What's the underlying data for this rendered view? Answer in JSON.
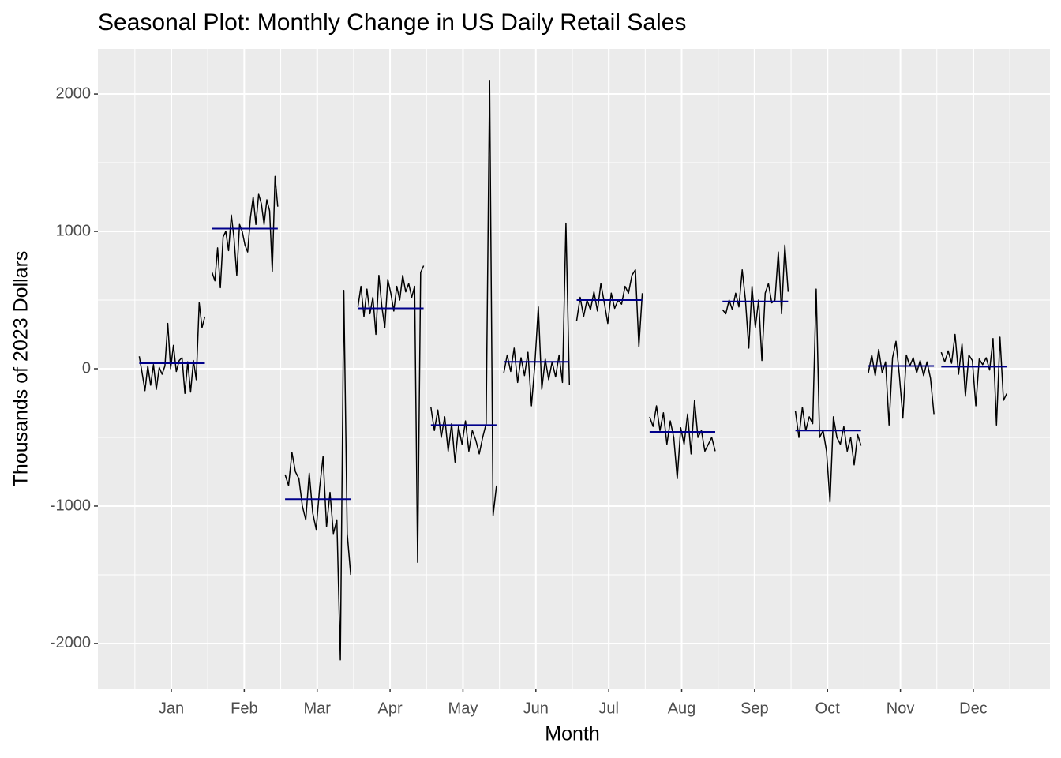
{
  "chart_data": {
    "type": "subseries",
    "title": "Seasonal Plot: Monthly Change in US Daily Retail Sales",
    "x_label": "Month",
    "y_label": "Thousands of 2023 Dollars",
    "ylim": [
      -2328,
      2328
    ],
    "yticks": [
      -2000,
      -1000,
      0,
      1000,
      2000
    ],
    "yminor": [
      -1500,
      -500,
      500,
      1500
    ],
    "grid": true,
    "line_color": "#000000",
    "mean_color": "#00008b",
    "series": [
      {
        "name": "Jan",
        "mean": 40,
        "values": [
          90,
          -30,
          -160,
          20,
          -120,
          30,
          -150,
          10,
          -40,
          20,
          330,
          0,
          170,
          -20,
          60,
          80,
          -180,
          50,
          -170,
          60,
          -80,
          480,
          300,
          380
        ]
      },
      {
        "name": "Feb",
        "mean": 1020,
        "values": [
          700,
          640,
          880,
          590,
          960,
          1000,
          860,
          1120,
          950,
          680,
          1050,
          1000,
          900,
          850,
          1100,
          1250,
          1050,
          1270,
          1200,
          1050,
          1230,
          1150,
          710,
          1400,
          1180
        ]
      },
      {
        "name": "Mar",
        "mean": -950,
        "values": [
          -770,
          -850,
          -610,
          -750,
          -800,
          -1000,
          -1100,
          -760,
          -1050,
          -1170,
          -870,
          -640,
          -1150,
          -900,
          -1200,
          -1100,
          -2120,
          570,
          -1200,
          -1500
        ]
      },
      {
        "name": "Apr",
        "mean": 440,
        "values": [
          450,
          600,
          380,
          580,
          400,
          520,
          250,
          680,
          450,
          300,
          650,
          550,
          420,
          600,
          500,
          680,
          560,
          620,
          520,
          600,
          -1410,
          700,
          750
        ]
      },
      {
        "name": "May",
        "mean": -410,
        "values": [
          -280,
          -450,
          -300,
          -500,
          -350,
          -600,
          -400,
          -680,
          -420,
          -550,
          -380,
          -600,
          -450,
          -520,
          -620,
          -500,
          -400,
          2100,
          -1070,
          -850
        ]
      },
      {
        "name": "Jun",
        "mean": 50,
        "values": [
          -30,
          100,
          -20,
          150,
          -100,
          80,
          -50,
          120,
          -270,
          30,
          450,
          -150,
          70,
          -80,
          50,
          -60,
          100,
          -100,
          1060,
          -120
        ]
      },
      {
        "name": "Jul",
        "mean": 500,
        "values": [
          350,
          520,
          380,
          500,
          430,
          560,
          420,
          620,
          480,
          330,
          550,
          440,
          500,
          470,
          600,
          550,
          680,
          720,
          160,
          550
        ]
      },
      {
        "name": "Aug",
        "mean": -460,
        "values": [
          -350,
          -420,
          -270,
          -450,
          -320,
          -550,
          -380,
          -500,
          -800,
          -430,
          -550,
          -330,
          -620,
          -230,
          -500,
          -450,
          -600,
          -550,
          -500,
          -600
        ]
      },
      {
        "name": "Sep",
        "mean": 490,
        "values": [
          430,
          400,
          500,
          430,
          550,
          450,
          720,
          500,
          150,
          600,
          300,
          500,
          60,
          550,
          620,
          480,
          500,
          850,
          400,
          900,
          560
        ]
      },
      {
        "name": "Oct",
        "mean": -450,
        "values": [
          -310,
          -500,
          -280,
          -450,
          -350,
          -400,
          580,
          -500,
          -450,
          -600,
          -970,
          -350,
          -500,
          -550,
          -420,
          -600,
          -500,
          -700,
          -480,
          -560
        ]
      },
      {
        "name": "Nov",
        "mean": 20,
        "values": [
          -30,
          100,
          -50,
          140,
          -30,
          50,
          -410,
          80,
          200,
          -50,
          -360,
          100,
          20,
          80,
          -30,
          60,
          -50,
          50,
          -70,
          -330
        ]
      },
      {
        "name": "Dec",
        "mean": 15,
        "values": [
          120,
          50,
          130,
          40,
          250,
          -40,
          180,
          -200,
          100,
          60,
          -270,
          70,
          30,
          80,
          -10,
          220,
          -410,
          230,
          -230,
          -180
        ]
      }
    ]
  }
}
